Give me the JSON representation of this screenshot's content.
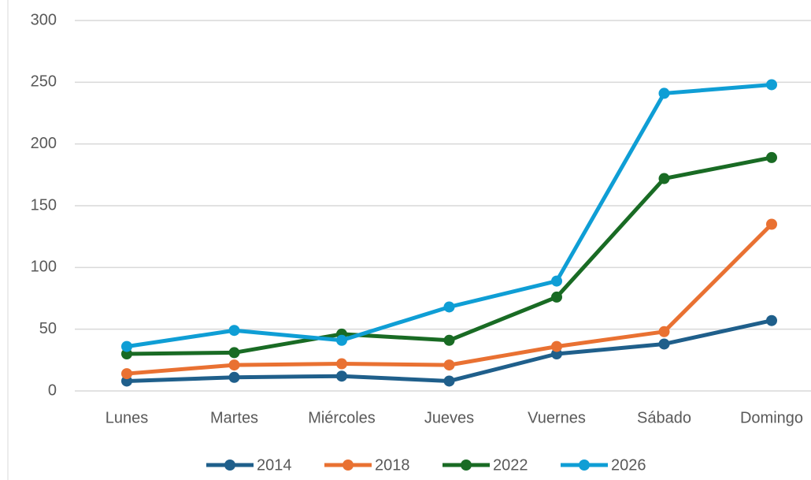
{
  "chart_data": {
    "type": "line",
    "categories": [
      "Lunes",
      "Martes",
      "Miércoles",
      "Jueves",
      "Vuernes",
      "Sábado",
      "Domingo"
    ],
    "series": [
      {
        "name": "2014",
        "color": "#1f5f8b",
        "values": [
          8,
          11,
          12,
          8,
          30,
          38,
          57
        ]
      },
      {
        "name": "2018",
        "color": "#e97132",
        "values": [
          14,
          21,
          22,
          21,
          36,
          48,
          135
        ]
      },
      {
        "name": "2022",
        "color": "#196b24",
        "values": [
          30,
          31,
          46,
          41,
          76,
          172,
          189
        ]
      },
      {
        "name": "2026",
        "color": "#0f9ed5",
        "values": [
          36,
          49,
          41,
          68,
          89,
          241,
          248
        ]
      }
    ],
    "ylim": [
      0,
      300
    ],
    "yticks": [
      0,
      50,
      100,
      150,
      200,
      250,
      300
    ],
    "grid": true,
    "legend": "bottom"
  }
}
